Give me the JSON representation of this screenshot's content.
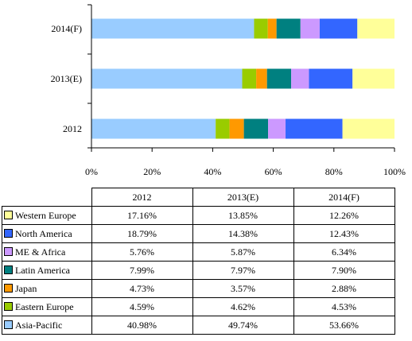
{
  "chart_data": {
    "type": "bar",
    "orientation": "horizontal",
    "stacked": true,
    "normalized": true,
    "categories": [
      "2014(F)",
      "2013(E)",
      "2012"
    ],
    "xlim": [
      0,
      100
    ],
    "xticks": [
      "0%",
      "20%",
      "40%",
      "60%",
      "80%",
      "100%"
    ],
    "grid": false,
    "series": [
      {
        "name": "Asia-Pacific",
        "color": "#99CCFF",
        "values": [
          53.66,
          49.74,
          40.98
        ],
        "labels": [
          "53.66%",
          "49.74%",
          "40.98%"
        ]
      },
      {
        "name": "Eastern Europe",
        "color": "#99CC00",
        "values": [
          4.53,
          4.62,
          4.59
        ],
        "labels": [
          "4.53%",
          "4.62%",
          "4.59%"
        ]
      },
      {
        "name": "Japan",
        "color": "#FF9900",
        "values": [
          2.88,
          3.57,
          4.73
        ],
        "labels": [
          "2.88%",
          "3.57%",
          "4.73%"
        ]
      },
      {
        "name": "Latin America",
        "color": "#008080",
        "values": [
          7.9,
          7.97,
          7.99
        ],
        "labels": [
          "7.90%",
          "7.97%",
          "7.99%"
        ]
      },
      {
        "name": "ME & Africa",
        "color": "#CC99FF",
        "values": [
          6.34,
          5.87,
          5.76
        ],
        "labels": [
          "6.34%",
          "5.87%",
          "5.76%"
        ]
      },
      {
        "name": "North America",
        "color": "#3366FF",
        "values": [
          12.43,
          14.38,
          18.79
        ],
        "labels": [
          "12.43%",
          "14.38%",
          "18.79%"
        ]
      },
      {
        "name": "Western Europe",
        "color": "#FFFF99",
        "values": [
          12.26,
          13.85,
          17.16
        ],
        "labels": [
          "12.26%",
          "13.85%",
          "17.16%"
        ]
      }
    ],
    "table": {
      "columns": [
        "2012",
        "2013(E)",
        "2014(F)"
      ],
      "row_order": [
        "Western Europe",
        "North America",
        "ME & Africa",
        "Latin America",
        "Japan",
        "Eastern Europe",
        "Asia-Pacific"
      ]
    }
  }
}
